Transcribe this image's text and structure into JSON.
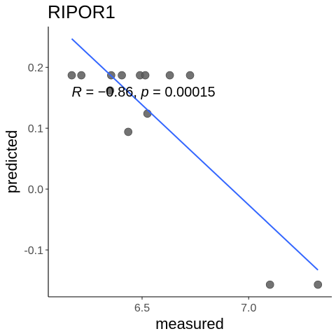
{
  "chart_data": {
    "type": "scatter",
    "title": "RIPOR1",
    "xlabel": "measured",
    "ylabel": "predicted",
    "xlim": [
      6.06,
      7.39
    ],
    "ylim": [
      -0.177,
      0.267
    ],
    "xticks": [
      6.5,
      7.0
    ],
    "xtick_labels": [
      "6.5",
      "7.0"
    ],
    "yticks": [
      -0.1,
      0.0,
      0.1,
      0.2
    ],
    "ytick_labels": [
      "-0.1",
      "0.0",
      "0.1",
      "0.2"
    ],
    "points": [
      {
        "x": 6.17,
        "y": 0.187
      },
      {
        "x": 6.215,
        "y": 0.187
      },
      {
        "x": 6.355,
        "y": 0.187
      },
      {
        "x": 6.405,
        "y": 0.187
      },
      {
        "x": 6.49,
        "y": 0.187
      },
      {
        "x": 6.515,
        "y": 0.187
      },
      {
        "x": 6.63,
        "y": 0.187
      },
      {
        "x": 6.725,
        "y": 0.187
      },
      {
        "x": 6.35,
        "y": 0.162
      },
      {
        "x": 6.525,
        "y": 0.124
      },
      {
        "x": 6.435,
        "y": 0.094
      },
      {
        "x": 7.1,
        "y": -0.157
      },
      {
        "x": 7.325,
        "y": -0.157
      }
    ],
    "point_color": "#5a5a5a",
    "fit_line": {
      "x": [
        6.17,
        7.325
      ],
      "y": [
        0.247,
        -0.133
      ],
      "color": "#3366FF"
    },
    "annotation": {
      "R_symbol": "R",
      "R_text": " = −0.86, ",
      "p_symbol": "p",
      "p_text": " = 0.00015",
      "x": 6.17,
      "y": 0.16
    },
    "grid": false,
    "legend": "none"
  }
}
